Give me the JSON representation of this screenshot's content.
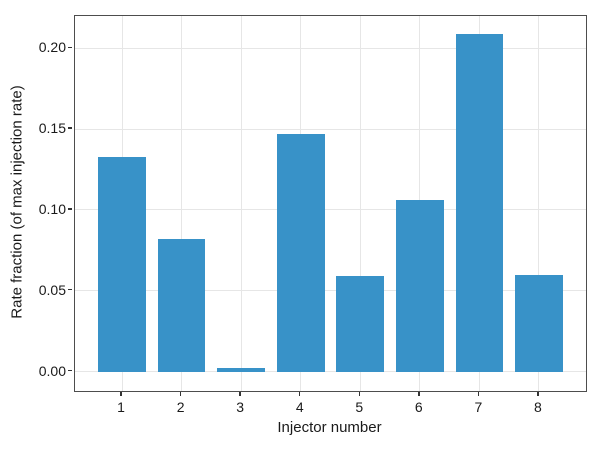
{
  "chart_data": {
    "type": "bar",
    "title": "",
    "xlabel": "Injector number",
    "ylabel": "Rate fraction (of max injection rate)",
    "categories": [
      "1",
      "2",
      "3",
      "4",
      "5",
      "6",
      "7",
      "8"
    ],
    "values": [
      0.133,
      0.082,
      0.002,
      0.147,
      0.059,
      0.106,
      0.209,
      0.06
    ],
    "x_positions": [
      1,
      2,
      3,
      4,
      5,
      6,
      7,
      8
    ],
    "bar_width": 0.8,
    "xlim": [
      0.21,
      8.79
    ],
    "ylim": [
      -0.012,
      0.22
    ],
    "ytick_values": [
      0.0,
      0.05,
      0.1,
      0.15,
      0.2
    ],
    "ytick_labels": [
      "0.00",
      "0.05",
      "0.10",
      "0.15",
      "0.20"
    ],
    "grid": true,
    "legend": null,
    "colors": {
      "bar": "#3892c8",
      "grid": "#e6e6e6",
      "spine": "#4d4d4d",
      "tick": "#333333",
      "text": "#1a1a1a"
    }
  }
}
